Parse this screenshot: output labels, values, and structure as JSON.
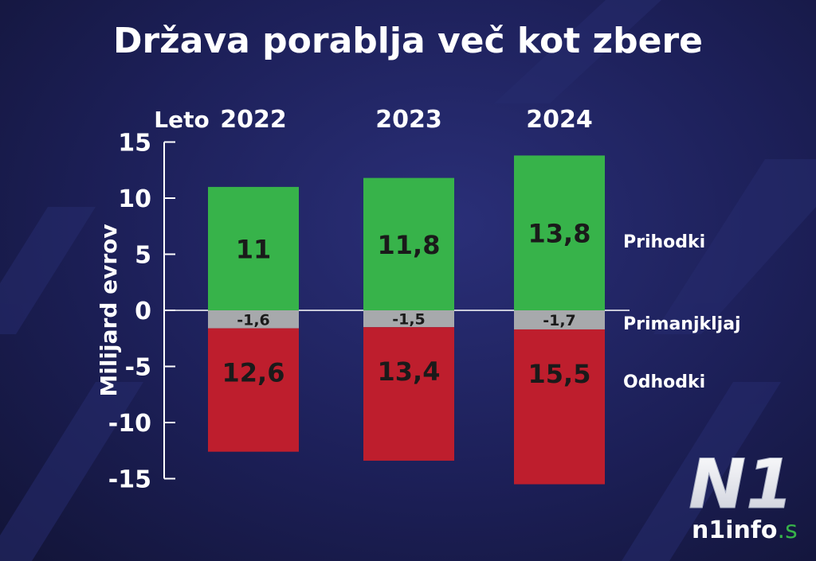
{
  "title": "Država porablja več kot zbere",
  "chart_data": {
    "type": "bar",
    "title": "Država porablja več kot zbere",
    "xlabel": "Leto",
    "ylabel": "Milijard evrov",
    "categories": [
      "2022",
      "2023",
      "2024"
    ],
    "ylim": [
      -15,
      15
    ],
    "yticks": [
      "15",
      "10",
      "5",
      "0",
      "-5",
      "-10",
      "-15"
    ],
    "series": [
      {
        "name": "Prihodki",
        "values": [
          11,
          11.8,
          13.8
        ],
        "labels": [
          "11",
          "11,8",
          "13,8"
        ],
        "color": "#37b34a"
      },
      {
        "name": "Primanjkljaj",
        "values": [
          -1.6,
          -1.5,
          -1.7
        ],
        "labels": [
          "-1,6",
          "-1,5",
          "-1,7"
        ],
        "color": "#a7a9ac"
      },
      {
        "name": "Odhodki",
        "values": [
          -12.6,
          -13.4,
          -15.5
        ],
        "labels": [
          "12,6",
          "13,4",
          "15,5"
        ],
        "color": "#be1e2d"
      }
    ],
    "legend_placement": "right"
  },
  "logo": {
    "mark": "N1",
    "site": "n1info",
    "tld": ".si",
    "tld_color": "#37b34a"
  }
}
